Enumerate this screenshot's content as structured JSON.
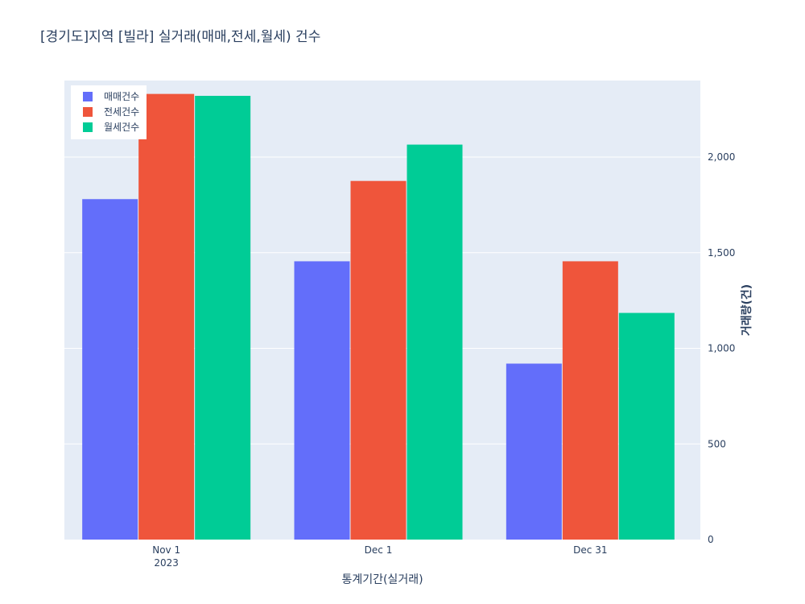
{
  "chart_data": {
    "type": "bar",
    "title": "[경기도]지역 [빌라] 실거래(매매,전세,월세) 건수",
    "xlabel": "통계기간(실거래)",
    "ylabel": "거래량(건)",
    "categories": [
      "Nov 1",
      "Dec 1",
      "Dec 31"
    ],
    "category_sublabels": [
      "2023",
      "",
      ""
    ],
    "ylim": [
      0,
      2400
    ],
    "yticks": [
      0,
      500,
      1000,
      1500,
      2000
    ],
    "ytick_labels": [
      "0",
      "500",
      "1,000",
      "1,500",
      "2,000"
    ],
    "y_axis_side": "right",
    "legend_position": "top-left",
    "grid": true,
    "series": [
      {
        "name": "매매건수",
        "color": "#636efa",
        "values": [
          1780,
          1455,
          920
        ]
      },
      {
        "name": "전세건수",
        "color": "#ef553b",
        "values": [
          2330,
          1875,
          1455
        ]
      },
      {
        "name": "월세건수",
        "color": "#00cc96",
        "values": [
          2320,
          2065,
          1185
        ]
      }
    ],
    "plot_bg": "#e5ecf6"
  }
}
